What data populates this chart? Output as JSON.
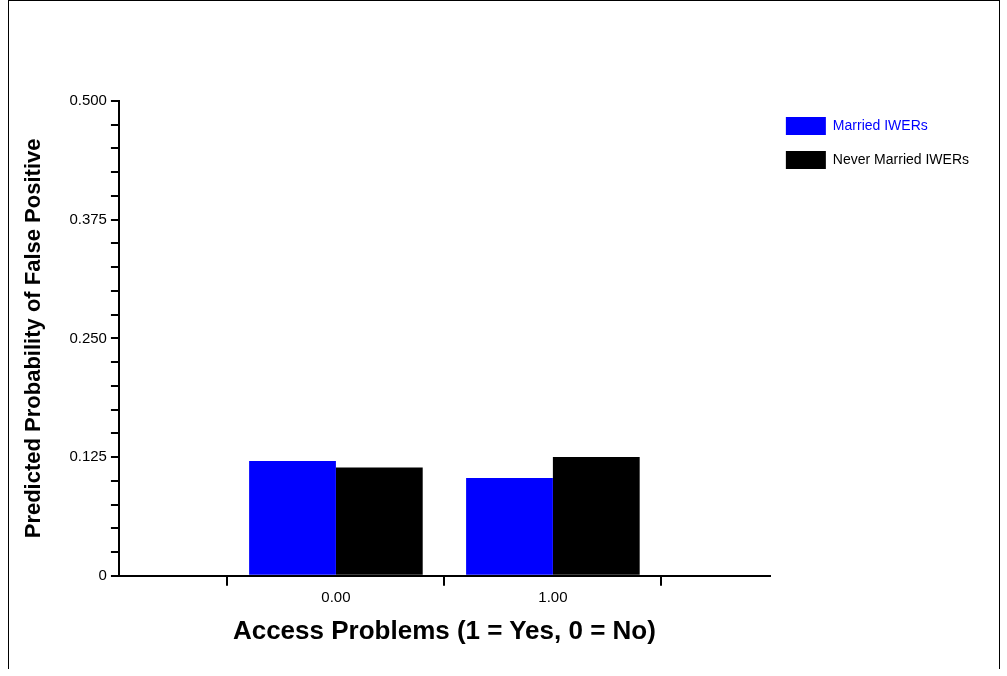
{
  "chart_data": {
    "type": "bar",
    "xlabel": "Access Problems (1 = Yes, 0 = No)",
    "ylabel": "Predicted Probability of False Positive",
    "x": [
      0,
      1
    ],
    "xlim": [
      -1,
      2
    ],
    "xticks": [
      {
        "value": 0,
        "label": "0.00"
      },
      {
        "value": 1,
        "label": "1.00"
      }
    ],
    "ylim": [
      0,
      0.5
    ],
    "yticks": [
      0,
      {
        "value": 0.025,
        "label": null
      },
      {
        "value": 0.05,
        "label": null
      },
      {
        "value": 0.075,
        "label": null
      },
      {
        "value": 0.1,
        "label": null
      },
      {
        "value": 0.125,
        "label": "0.125"
      },
      {
        "value": 0.15,
        "label": null
      },
      {
        "value": 0.175,
        "label": null
      },
      {
        "value": 0.2,
        "label": null
      },
      {
        "value": 0.225,
        "label": null
      },
      {
        "value": 0.25,
        "label": "0.250"
      },
      {
        "value": 0.275,
        "label": null
      },
      {
        "value": 0.3,
        "label": null
      },
      {
        "value": 0.325,
        "label": null
      },
      {
        "value": 0.35,
        "label": null
      },
      {
        "value": 0.375,
        "label": "0.375"
      },
      {
        "value": 0.4,
        "label": null
      },
      {
        "value": 0.425,
        "label": null
      },
      {
        "value": 0.45,
        "label": null
      },
      {
        "value": 0.475,
        "label": null
      },
      {
        "value": 0.5,
        "label": "0.500"
      }
    ],
    "series": [
      {
        "name": "Married IWERs",
        "color": "#0000ff",
        "values": [
          0.121,
          0.103
        ]
      },
      {
        "name": "Never Married IWERs",
        "color": "#000000",
        "values": [
          0.114,
          0.125
        ]
      }
    ],
    "grid": false,
    "legend": "top right"
  }
}
